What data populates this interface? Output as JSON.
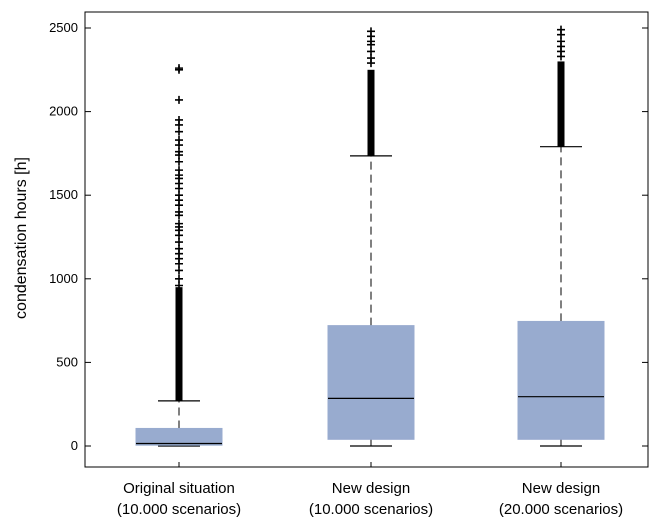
{
  "chart_data": {
    "type": "box",
    "title": "",
    "xlabel": "",
    "ylabel": "condensation hours [h]",
    "ylim": [
      -100,
      2550
    ],
    "yticks": [
      0,
      500,
      1000,
      1500,
      2000,
      2500
    ],
    "grid": false,
    "box_color": "#98abcf",
    "categories": [
      [
        "Original situation",
        "(10.000 scenarios)"
      ],
      [
        "New design",
        "(10.000 scenarios)"
      ],
      [
        "New design",
        "(20.000 scenarios)"
      ]
    ],
    "boxes": [
      {
        "whisker_low": 0,
        "q1": 5,
        "median": 15,
        "q3": 105,
        "whisker_high": 270,
        "outlier_range": [
          270,
          950
        ],
        "outliers": [
          960,
          1000,
          1050,
          1090,
          1120,
          1150,
          1180,
          1220,
          1260,
          1290,
          1310,
          1330,
          1380,
          1400,
          1440,
          1470,
          1500,
          1540,
          1570,
          1600,
          1620,
          1650,
          1700,
          1740,
          1760,
          1800,
          1830,
          1880,
          1920,
          1950,
          2070,
          2250,
          2260
        ]
      },
      {
        "whisker_low": 0,
        "q1": 40,
        "median": 285,
        "q3": 720,
        "whisker_high": 1735,
        "outlier_range": [
          1735,
          2250
        ],
        "outliers": [
          2290,
          2320,
          2360,
          2400,
          2420,
          2450,
          2480
        ]
      },
      {
        "whisker_low": 0,
        "q1": 40,
        "median": 295,
        "q3": 745,
        "whisker_high": 1790,
        "outlier_range": [
          1790,
          2300
        ],
        "outliers": [
          2330,
          2360,
          2390,
          2420,
          2460,
          2490
        ]
      }
    ]
  }
}
